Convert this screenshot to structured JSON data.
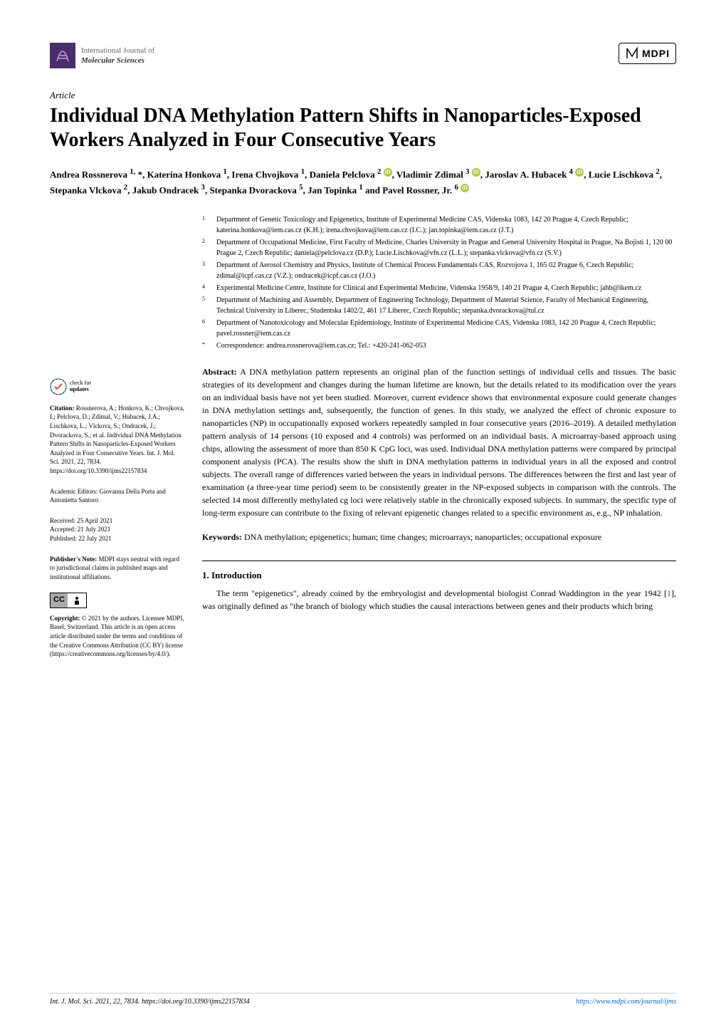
{
  "journal": {
    "line1": "International Journal of",
    "line2": "Molecular Sciences",
    "publisher": "MDPI"
  },
  "article_type": "Article",
  "title": "Individual DNA Methylation Pattern Shifts in Nanoparticles-Exposed Workers Analyzed in Four Consecutive Years",
  "authors_html": "Andrea Rossnerova <sup>1,</sup> *, Katerina Honkova <sup>1</sup>, Irena Chvojkova <sup>1</sup>, Daniela Pelclova <sup>2</sup> <span class='orcid-icon'>iD</span>, Vladimir Zdimal <sup>3</sup> <span class='orcid-icon'>iD</span>, Jaroslav A. Hubacek <sup>4</sup> <span class='orcid-icon'>iD</span>, Lucie Lischkova <sup>2</sup>, Stepanka Vlckova <sup>2</sup>, Jakub Ondracek <sup>3</sup>, Stepanka Dvorackova <sup>5</sup>, Jan Topinka <sup>1</sup> and Pavel Rossner, Jr. <sup>6</sup> <span class='orcid-icon'>iD</span>",
  "affiliations": [
    {
      "num": "1",
      "text": "Department of Genetic Toxicology and Epigenetics, Institute of Experimental Medicine CAS, Videnska 1083, 142 20 Prague 4, Czech Republic; katerina.honkova@iem.cas.cz (K.H.); irena.chvojkova@iem.cas.cz (I.C.); jan.topinka@iem.cas.cz (J.T.)"
    },
    {
      "num": "2",
      "text": "Department of Occupational Medicine, First Faculty of Medicine, Charles University in Prague and General University Hospital in Prague, Na Bojisti 1, 120 00 Prague 2, Czech Republic; daniela@pelclova.cz (D.P.); Lucie.Lischkova@vfn.cz (L.L.); stepanka.vlckova@vfn.cz (S.V.)"
    },
    {
      "num": "3",
      "text": "Department of Aerosol Chemistry and Physics, Institute of Chemical Process Fundamentals CAS, Rozvojova 1, 165 02 Prague 6, Czech Republic; zdimal@icpf.cas.cz (V.Z.); ondracek@icpf.cas.cz (J.O.)"
    },
    {
      "num": "4",
      "text": "Experimental Medicine Centre, Institute for Clinical and Experimental Medicine, Videnska 1958/9, 140 21 Prague 4, Czech Republic; jahb@ikem.cz"
    },
    {
      "num": "5",
      "text": "Department of Machining and Assembly, Department of Engineering Technology, Department of Material Science, Faculty of Mechanical Engineering, Technical University in Liberec, Studentska 1402/2, 461 17 Liberec, Czech Republic; stepanka.dvorackova@tul.cz"
    },
    {
      "num": "6",
      "text": "Department of Nanotoxicology and Molecular Epidemiology, Institute of Experimental Medicine CAS, Videnska 1083, 142 20 Prague 4, Czech Republic; pavel.rossner@iem.cas.cz"
    },
    {
      "num": "*",
      "text": "Correspondence: andrea.rossnerova@iem.cas.cz; Tel.: +420-241-062-053"
    }
  ],
  "abstract": {
    "label": "Abstract:",
    "text": "A DNA methylation pattern represents an original plan of the function settings of individual cells and tissues. The basic strategies of its development and changes during the human lifetime are known, but the details related to its modification over the years on an individual basis have not yet been studied. Moreover, current evidence shows that environmental exposure could generate changes in DNA methylation settings and, subsequently, the function of genes. In this study, we analyzed the effect of chronic exposure to nanoparticles (NP) in occupationally exposed workers repeatedly sampled in four consecutive years (2016–2019). A detailed methylation pattern analysis of 14 persons (10 exposed and 4 controls) was performed on an individual basis. A microarray-based approach using chips, allowing the assessment of more than 850 K CpG loci, was used. Individual DNA methylation patterns were compared by principal component analysis (PCA). The results show the shift in DNA methylation patterns in individual years in all the exposed and control subjects. The overall range of differences varied between the years in individual persons. The differences between the first and last year of examination (a three-year time period) seem to be consistently greater in the NP-exposed subjects in comparison with the controls. The selected 14 most differently methylated cg loci were relatively stable in the chronically exposed subjects. In summary, the specific type of long-term exposure can contribute to the fixing of relevant epigenetic changes related to a specific environment as, e.g., NP inhalation."
  },
  "keywords": {
    "label": "Keywords:",
    "text": "DNA methylation; epigenetics; human; time changes; microarrays; nanoparticles; occupational exposure"
  },
  "section1": {
    "heading": "1. Introduction",
    "text_html": "The term \"epigenetics\", already coined by the embryologist and developmental biologist Conrad Waddington in the year 1942 [<span class='cite-link'>1</span>], was originally defined as \"the branch of biology which studies the causal interactions between genes and their products which bring"
  },
  "sidebar": {
    "check_updates": "check for updates",
    "citation_label": "Citation:",
    "citation_text": "Rossnerova, A.; Honkova, K.; Chvojkova, I.; Pelclova, D.; Zdimal, V.; Hubacek, J.A.; Lischkova, L.; Vlckova, S.; Ondracek, J.; Dvorackova, S.; et al. Individual DNA Methylation Pattern Shifts in Nanoparticles-Exposed Workers Analyzed in Four Consecutive Years. Int. J. Mol. Sci. 2021, 22, 7834. https://doi.org/10.3390/ijms22157834",
    "editors_label": "Academic Editors:",
    "editors_text": "Giovanna Della Porta and Antonietta Santoro",
    "received": "Received: 25 April 2021",
    "accepted": "Accepted: 21 July 2021",
    "published": "Published: 22 July 2021",
    "publisher_note_label": "Publisher's Note:",
    "publisher_note_text": "MDPI stays neutral with regard to jurisdictional claims in published maps and institutional affiliations.",
    "copyright_label": "Copyright:",
    "copyright_text": "© 2021 by the authors. Licensee MDPI, Basel, Switzerland. This article is an open access article distributed under the terms and conditions of the Creative Commons Attribution (CC BY) license (https://creativecommons.org/licenses/by/4.0/)."
  },
  "footer": {
    "left": "Int. J. Mol. Sci. 2021, 22, 7834. https://doi.org/10.3390/ijms22157834",
    "right": "https://www.mdpi.com/journal/ijms"
  },
  "colors": {
    "journal_icon_bg": "#4a2d6b",
    "orcid": "#a6ce39",
    "link": "#0066cc",
    "text": "#000000",
    "bg": "#ffffff"
  }
}
